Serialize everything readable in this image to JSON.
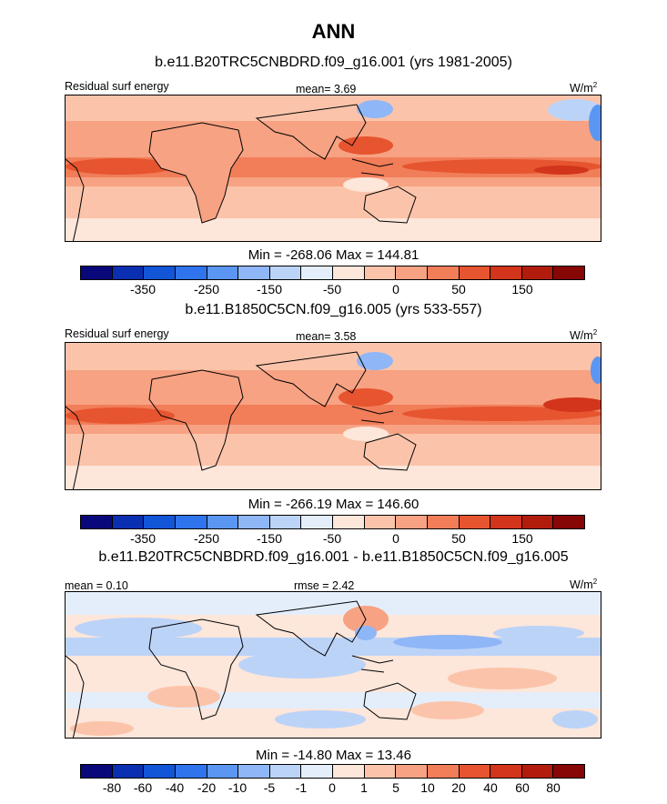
{
  "title": "ANN",
  "units_base": "W/m",
  "units_exp": "2",
  "panels": [
    {
      "case": "b.e11.B20TRC5CNBDRD.f09_g16.001 (yrs 1981-2005)",
      "left_label": "Residual surf energy",
      "center_label": "mean=   3.69",
      "stats": "Min = -268.06 Max = 144.81"
    },
    {
      "case": "b.e11.B1850C5CN.f09_g16.005 (yrs 533-557)",
      "left_label": "Residual surf energy",
      "center_label": "mean=   3.58",
      "stats": "Min = -266.19 Max = 146.60"
    },
    {
      "case": "b.e11.B20TRC5CNBDRD.f09_g16.001 - b.e11.B1850C5CN.f09_g16.005",
      "left_label": "mean =    0.10",
      "center_label": "rmse =    2.42",
      "stats": "Min = -14.80 Max = 13.46"
    }
  ],
  "colorbar_colors": [
    "#08087a",
    "#0a2fb0",
    "#1255d6",
    "#2f74ec",
    "#5b96f2",
    "#8fb6f6",
    "#bcd3f8",
    "#e4eefb",
    "#fde6da",
    "#fbc4aa",
    "#f7a283",
    "#f17d59",
    "#e6552f",
    "#d2351b",
    "#b21c0c",
    "#870606"
  ],
  "colorbar_ticks": [
    "-350",
    "-250",
    "-150",
    "-50",
    "0",
    "50",
    "150"
  ],
  "diff_ticks": [
    "-80",
    "-60",
    "-40",
    "-20",
    "-10",
    "-5",
    "-1",
    "0",
    "1",
    "5",
    "10",
    "20",
    "40",
    "60",
    "80"
  ]
}
